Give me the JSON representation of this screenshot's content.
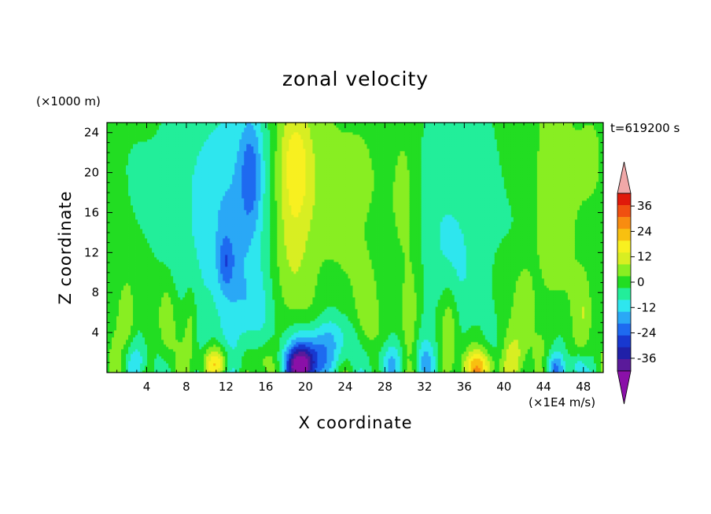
{
  "chart_data": {
    "type": "heatmap",
    "title": "zonal velocity",
    "xlabel": "X coordinate",
    "ylabel": "Z coordinate",
    "z_unit_label": "(×1000 m)",
    "time_label": "t=619200 s",
    "colorbar_unit_label": "(×1E4 m/s)",
    "xlim": [
      0,
      50
    ],
    "ylim": [
      0,
      25
    ],
    "x_ticks": [
      4,
      8,
      12,
      16,
      20,
      24,
      28,
      32,
      36,
      40,
      44,
      48
    ],
    "y_ticks": [
      4,
      8,
      12,
      16,
      20,
      24
    ],
    "colorbar": {
      "levels": [
        -42,
        -36,
        -30,
        -24,
        -18,
        -12,
        -6,
        0,
        6,
        12,
        18,
        24,
        30,
        36,
        42
      ],
      "tick_labels": [
        "36",
        "24",
        "12",
        "0",
        "-12",
        "-24",
        "-36"
      ],
      "tick_values": [
        36,
        24,
        12,
        0,
        -12,
        -24,
        -36
      ],
      "colors": [
        "#5a1a9a",
        "#2020a8",
        "#1838d0",
        "#1e6af0",
        "#2aa8f6",
        "#2ee6ee",
        "#22ee9a",
        "#22dd22",
        "#88ee22",
        "#d8ee22",
        "#f8f020",
        "#f8c010",
        "#f88c10",
        "#f05010",
        "#e01a0a"
      ],
      "over_color": "#f0a8a8",
      "under_color": "#8a10a8",
      "extend": "both"
    },
    "field_description_points": [
      {
        "x": 2,
        "z": 6,
        "value": 10
      },
      {
        "x": 11,
        "z": 0.5,
        "value": 20
      },
      {
        "x": 14,
        "z": 20,
        "value": -18
      },
      {
        "x": 18.5,
        "z": 15,
        "value": 18
      },
      {
        "x": 19.5,
        "z": 0.5,
        "value": -35
      },
      {
        "x": 25,
        "z": 16,
        "value": 3
      },
      {
        "x": 37.5,
        "z": 0.5,
        "value": 20
      },
      {
        "x": 45,
        "z": 20,
        "value": 10
      }
    ]
  }
}
